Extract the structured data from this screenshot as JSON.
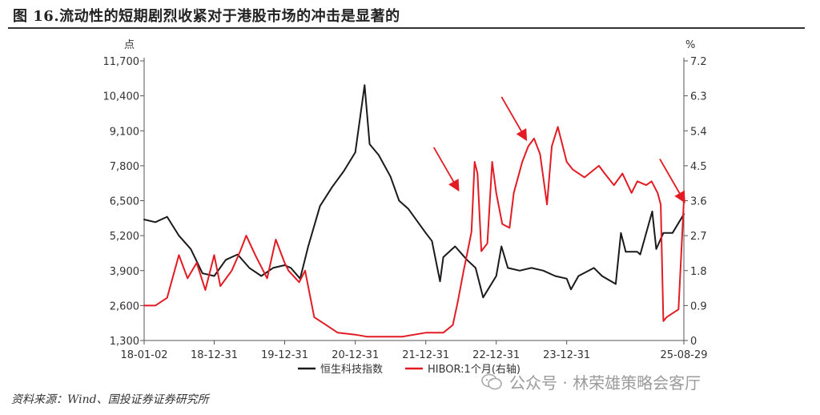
{
  "title": "图 16.流动性的短期剧烈收紧对于港股市场的冲击是显著的",
  "source": "资料来源：Wind、国投证券证券研究所",
  "watermark": "公众号 · 林荣雄策略会客厅",
  "chart_data": {
    "type": "line",
    "left_axis": {
      "unit": "点",
      "ticks": [
        "1,300",
        "2,600",
        "3,900",
        "5,200",
        "6,500",
        "7,800",
        "9,100",
        "10,400",
        "11,700"
      ],
      "ylim": [
        1300,
        11700
      ]
    },
    "right_axis": {
      "unit": "%",
      "ticks": [
        "0",
        "0.9",
        "1.8",
        "2.7",
        "3.6",
        "4.5",
        "5.4",
        "6.3",
        "7.2"
      ],
      "ylim": [
        0,
        7.2
      ]
    },
    "x_ticks": [
      "18-01-02",
      "18-12-31",
      "19-12-31",
      "20-12-31",
      "21-12-31",
      "22-12-31",
      "23-12-31",
      "25-08-29"
    ],
    "legend_placement": "bottom",
    "grid": false,
    "series": [
      {
        "name": "恒生科技指数",
        "axis": "left",
        "color": "#1a1a1a",
        "x": [
          "18-01-02",
          "18-03-01",
          "18-05-01",
          "18-07-01",
          "18-09-01",
          "18-10-31",
          "18-12-31",
          "19-03-01",
          "19-05-01",
          "19-07-01",
          "19-09-01",
          "19-11-01",
          "19-12-31",
          "20-02-01",
          "20-03-20",
          "20-05-01",
          "20-07-01",
          "20-09-01",
          "20-11-01",
          "20-12-31",
          "21-02-17",
          "21-03-15",
          "21-05-01",
          "21-07-01",
          "21-08-15",
          "21-10-01",
          "21-12-31",
          "22-02-01",
          "22-03-15",
          "22-04-01",
          "22-06-01",
          "22-08-01",
          "22-09-15",
          "22-10-24",
          "22-12-31",
          "23-01-27",
          "23-03-01",
          "23-05-01",
          "23-07-01",
          "23-09-01",
          "23-11-01",
          "23-12-31",
          "24-01-22",
          "24-03-01",
          "24-05-20",
          "24-07-01",
          "24-09-10",
          "24-10-07",
          "24-11-01",
          "24-12-31",
          "25-01-15",
          "25-03-18",
          "25-04-08",
          "25-05-15",
          "25-07-01",
          "25-08-29"
        ],
        "y": [
          5800,
          5700,
          5900,
          5200,
          4700,
          3800,
          3700,
          4300,
          4500,
          4000,
          3700,
          4000,
          4100,
          4000,
          3600,
          4800,
          6300,
          7000,
          7600,
          8300,
          10800,
          8600,
          8200,
          7400,
          6500,
          6200,
          5300,
          5000,
          3500,
          4400,
          4800,
          4300,
          4000,
          2900,
          3700,
          4800,
          4000,
          3900,
          4000,
          3900,
          3700,
          3600,
          3200,
          3700,
          4000,
          3700,
          3400,
          5300,
          4600,
          4600,
          4500,
          6100,
          4700,
          5300,
          5300,
          6000
        ]
      },
      {
        "name": "HIBOR:1个月(右轴)",
        "axis": "right",
        "color": "#e31b23",
        "x": [
          "18-01-02",
          "18-03-01",
          "18-05-01",
          "18-07-01",
          "18-08-15",
          "18-10-01",
          "18-11-15",
          "18-12-31",
          "19-02-01",
          "19-04-01",
          "19-05-15",
          "19-06-15",
          "19-08-01",
          "19-10-01",
          "19-11-15",
          "19-12-31",
          "20-01-20",
          "20-03-15",
          "20-04-15",
          "20-06-01",
          "20-08-01",
          "20-10-01",
          "20-12-31",
          "21-03-01",
          "21-06-01",
          "21-09-01",
          "21-12-31",
          "22-02-01",
          "22-04-01",
          "22-05-20",
          "22-06-15",
          "22-07-15",
          "22-08-05",
          "22-08-25",
          "22-09-10",
          "22-09-25",
          "22-10-15",
          "22-11-15",
          "22-12-10",
          "22-12-31",
          "23-01-31",
          "23-03-10",
          "23-04-01",
          "23-05-15",
          "23-06-15",
          "23-07-15",
          "23-08-15",
          "23-09-20",
          "23-10-15",
          "23-11-15",
          "23-12-31",
          "24-02-01",
          "24-04-01",
          "24-06-15",
          "24-07-15",
          "24-09-01",
          "24-10-15",
          "24-12-01",
          "24-12-31",
          "25-02-15",
          "25-03-15",
          "25-04-15",
          "25-05-01",
          "25-05-15",
          "25-06-01",
          "25-07-01",
          "25-08-01",
          "25-08-29"
        ],
        "y": [
          0.9,
          0.9,
          1.1,
          2.2,
          1.6,
          2.0,
          1.3,
          2.2,
          1.4,
          1.8,
          2.3,
          2.7,
          2.2,
          1.6,
          2.6,
          2.0,
          1.8,
          1.5,
          1.8,
          0.6,
          0.4,
          0.2,
          0.15,
          0.1,
          0.1,
          0.1,
          0.2,
          0.2,
          0.2,
          0.4,
          1.0,
          1.8,
          2.3,
          2.8,
          4.6,
          4.3,
          2.3,
          2.5,
          4.6,
          3.8,
          3.0,
          2.9,
          3.8,
          4.6,
          5.0,
          5.2,
          4.8,
          3.5,
          5.0,
          5.5,
          4.6,
          4.4,
          4.2,
          4.5,
          4.3,
          4.0,
          4.3,
          3.8,
          4.1,
          4.0,
          4.1,
          3.8,
          3.5,
          0.5,
          0.6,
          0.7,
          0.8,
          3.6
        ]
      }
    ],
    "annotations": [
      {
        "type": "arrow",
        "label": "",
        "color": "#e31b23",
        "target_x": "22-06-15",
        "target_y_right": 3.9
      },
      {
        "type": "arrow",
        "label": "",
        "color": "#e31b23",
        "target_x": "23-06-01",
        "target_y_right": 5.2
      },
      {
        "type": "arrow",
        "label": "",
        "color": "#e31b23",
        "target_x": "25-08-29",
        "target_y_right": 3.6
      }
    ]
  }
}
